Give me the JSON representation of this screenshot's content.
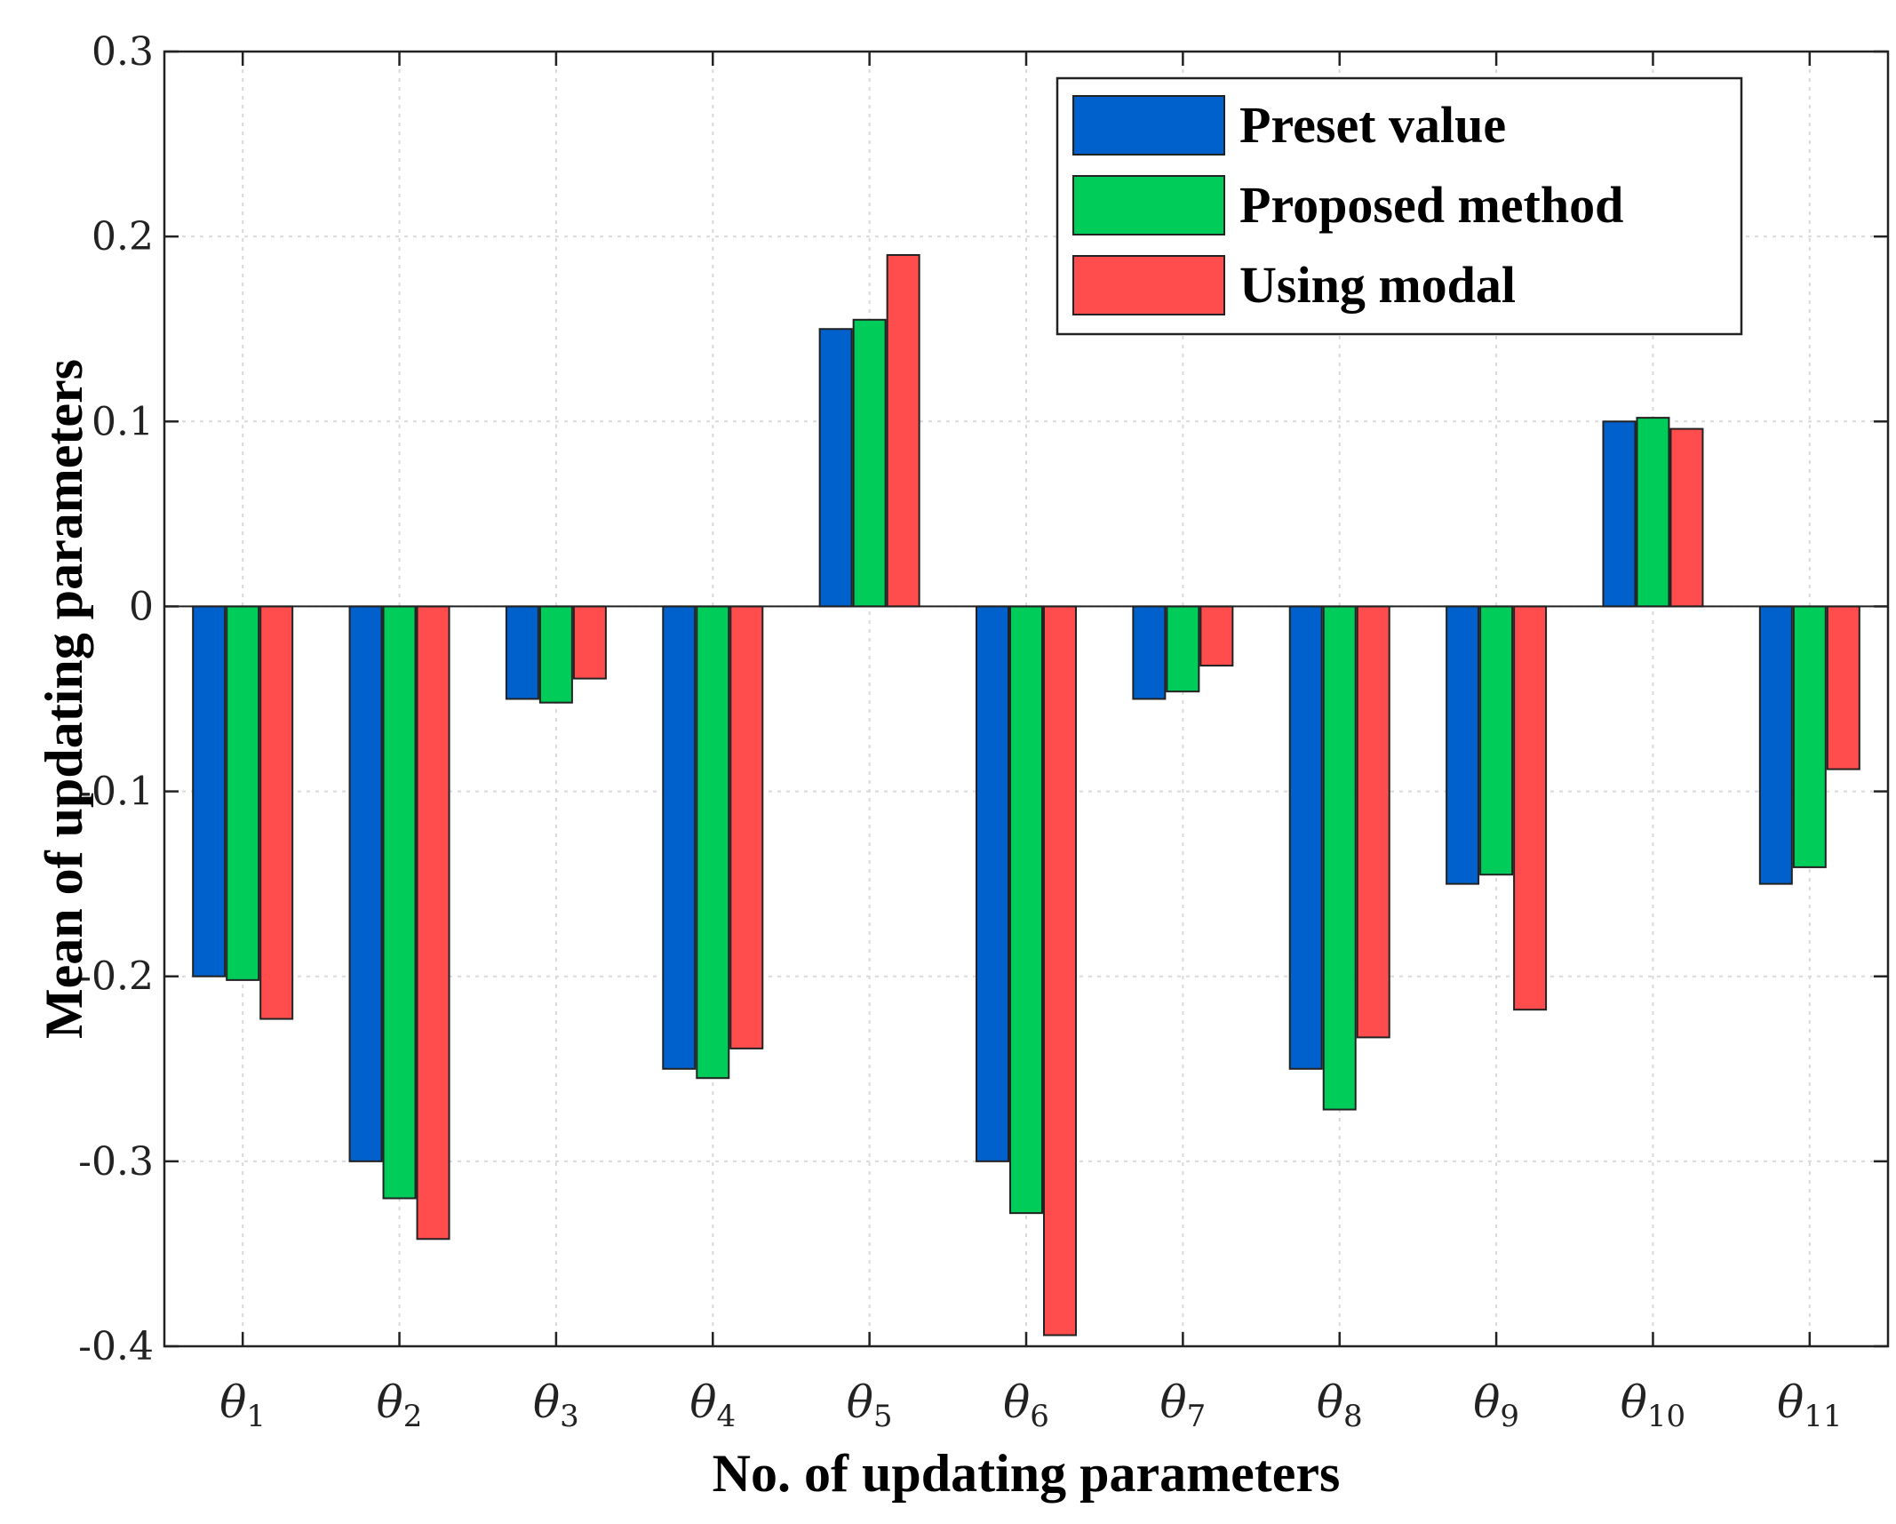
{
  "chart_data": {
    "type": "bar",
    "title": "",
    "xlabel": "No. of updating parameters",
    "ylabel": "Mean of updating parameters",
    "ylim": [
      -0.4,
      0.3
    ],
    "yticks": [
      "0.3",
      "0.2",
      "0.1",
      "0",
      "-0.1",
      "-0.2",
      "-0.3",
      "-0.4"
    ],
    "ytick_values": [
      0.3,
      0.2,
      0.1,
      0,
      -0.1,
      -0.2,
      -0.3,
      -0.4
    ],
    "grid": true,
    "legend_position": "top-right",
    "categories": [
      {
        "base": "θ",
        "sub": "1"
      },
      {
        "base": "θ",
        "sub": "2"
      },
      {
        "base": "θ",
        "sub": "3"
      },
      {
        "base": "θ",
        "sub": "4"
      },
      {
        "base": "θ",
        "sub": "5"
      },
      {
        "base": "θ",
        "sub": "6"
      },
      {
        "base": "θ",
        "sub": "7"
      },
      {
        "base": "θ",
        "sub": "8"
      },
      {
        "base": "θ",
        "sub": "9"
      },
      {
        "base": "θ",
        "sub": "10"
      },
      {
        "base": "θ",
        "sub": "11"
      }
    ],
    "series": [
      {
        "name": "Preset value",
        "color": "#0061CC",
        "values": [
          -0.2,
          -0.3,
          -0.05,
          -0.25,
          0.15,
          -0.3,
          -0.05,
          -0.25,
          -0.15,
          0.1,
          -0.15
        ]
      },
      {
        "name": "Proposed method",
        "color": "#00CC5A",
        "values": [
          -0.202,
          -0.32,
          -0.052,
          -0.255,
          0.155,
          -0.328,
          -0.046,
          -0.272,
          -0.145,
          0.102,
          -0.141
        ]
      },
      {
        "name": "Using modal",
        "color": "#FF4D4D",
        "values": [
          -0.223,
          -0.342,
          -0.039,
          -0.239,
          0.19,
          -0.394,
          -0.032,
          -0.233,
          -0.218,
          0.096,
          -0.088
        ]
      }
    ]
  }
}
